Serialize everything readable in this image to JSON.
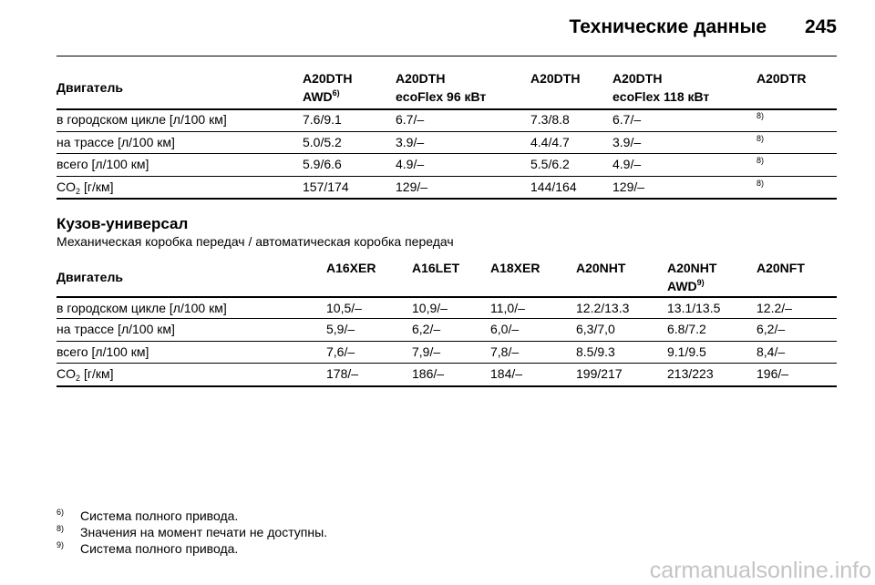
{
  "header": {
    "title": "Технические данные",
    "page": "245"
  },
  "tables": [
    {
      "headers": [
        {
          "lines": [
            "Двигатель"
          ]
        },
        {
          "lines": [
            "A20DTH",
            "AWD"
          ],
          "sup": "6)"
        },
        {
          "lines": [
            "A20DTH",
            "ecoFlex 96 кВт"
          ]
        },
        {
          "lines": [
            "A20DTH"
          ]
        },
        {
          "lines": [
            "A20DTH",
            "ecoFlex 118 кВт"
          ]
        },
        {
          "lines": [
            "A20DTR"
          ]
        }
      ],
      "rows": [
        {
          "label": "в городском цикле [л/100 км]",
          "cells": [
            "7.6/9.1",
            "6.7/–",
            "7.3/8.8",
            "6.7/–"
          ],
          "note": "8)"
        },
        {
          "label": "на трассе [л/100 км]",
          "cells": [
            "5.0/5.2",
            "3.9/–",
            "4.4/4.7",
            "3.9/–"
          ],
          "note": "8)"
        },
        {
          "label": "всего [л/100 км]",
          "cells": [
            "5.9/6.6",
            "4.9/–",
            "5.5/6.2",
            "4.9/–"
          ],
          "note": "8)"
        },
        {
          "label": "CO",
          "label_sub": "2",
          "label_rest": "[г/км]",
          "cells": [
            "157/174",
            "129/–",
            "144/164",
            "129/–"
          ],
          "note": "8)"
        }
      ]
    },
    {
      "section": {
        "title": "Кузов-универсал",
        "subtitle": "Механическая коробка передач / автоматическая коробка передач"
      },
      "headers": [
        {
          "lines": [
            "Двигатель"
          ]
        },
        {
          "lines": [
            "A16XER"
          ]
        },
        {
          "lines": [
            "A16LET"
          ]
        },
        {
          "lines": [
            "A18XER"
          ]
        },
        {
          "lines": [
            "A20NHT"
          ]
        },
        {
          "lines": [
            "A20NHT",
            "AWD"
          ],
          "sup": "9)"
        },
        {
          "lines": [
            "A20NFT"
          ]
        }
      ],
      "rows": [
        {
          "label": "в городском цикле [л/100 км]",
          "cells": [
            "10,5/–",
            "10,9/–",
            "11,0/–",
            "12.2/13.3",
            "13.1/13.5",
            "12.2/–"
          ]
        },
        {
          "label": "на трассе [л/100 км]",
          "cells": [
            "5,9/–",
            "6,2/–",
            "6,0/–",
            "6,3/7,0",
            "6.8/7.2",
            "6,2/–"
          ]
        },
        {
          "label": "всего [л/100 км]",
          "cells": [
            "7,6/–",
            "7,9/–",
            "7,8/–",
            "8.5/9.3",
            "9.1/9.5",
            "8,4/–"
          ]
        },
        {
          "label": "CO",
          "label_sub": "2",
          "label_rest": "[г/км]",
          "cells": [
            "178/–",
            "186/–",
            "184/–",
            "199/217",
            "213/223",
            "196/–"
          ]
        }
      ]
    }
  ],
  "footnotes": [
    {
      "mark": "6)",
      "text": "Система полного привода."
    },
    {
      "mark": "8)",
      "text": "Значения на момент печати не доступны."
    },
    {
      "mark": "9)",
      "text": "Система полного привода."
    }
  ],
  "watermark": "carmanualsonline.info"
}
